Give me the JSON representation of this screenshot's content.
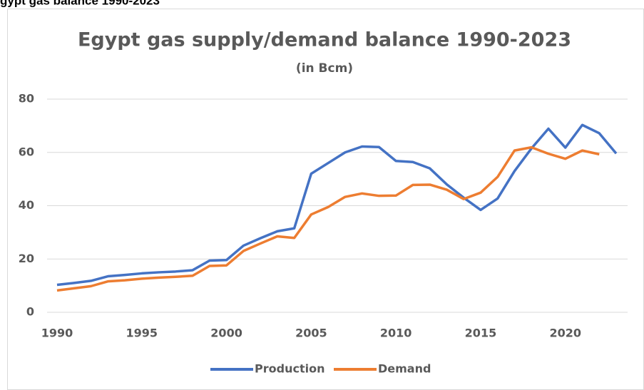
{
  "header": "gypt gas balance 1990-2023",
  "chart_data": {
    "type": "line",
    "title": "Egypt gas supply/demand balance 1990-2023",
    "subtitle": "(in Bcm)",
    "x": [
      1990,
      1991,
      1992,
      1993,
      1994,
      1995,
      1996,
      1997,
      1998,
      1999,
      2000,
      2001,
      2002,
      2003,
      2004,
      2005,
      2006,
      2007,
      2008,
      2009,
      2010,
      2011,
      2012,
      2013,
      2014,
      2015,
      2016,
      2017,
      2018,
      2019,
      2020,
      2021,
      2022,
      2023
    ],
    "series": [
      {
        "name": "Production",
        "color": "#4472c4",
        "values": [
          10.3,
          11,
          11.8,
          13.5,
          14,
          14.6,
          15,
          15.3,
          15.8,
          19.4,
          19.6,
          25,
          27.8,
          30.4,
          31.5,
          52,
          56,
          60,
          62.2,
          62,
          56.8,
          56.4,
          54,
          48,
          43,
          38.4,
          42.7,
          53,
          61.5,
          68.9,
          61.8,
          70.3,
          67.2,
          59.6
        ]
      },
      {
        "name": "Demand",
        "color": "#ed7d31",
        "values": [
          8.2,
          9,
          9.8,
          11.6,
          12,
          12.6,
          13,
          13.3,
          13.7,
          17.4,
          17.6,
          23,
          25.8,
          28.5,
          27.9,
          36.7,
          39.5,
          43.3,
          44.6,
          43.7,
          43.8,
          47.8,
          47.9,
          46,
          42.5,
          44.9,
          50.8,
          60.7,
          61.9,
          59.5,
          57.6,
          60.7,
          59.3,
          null
        ]
      }
    ],
    "xlim": [
      1990,
      2023
    ],
    "xticks": [
      1990,
      1995,
      2000,
      2005,
      2010,
      2015,
      2020
    ],
    "ylim": [
      0,
      80
    ],
    "yticks": [
      0,
      20,
      40,
      60,
      80
    ],
    "grid": true,
    "legend": "bottom"
  }
}
